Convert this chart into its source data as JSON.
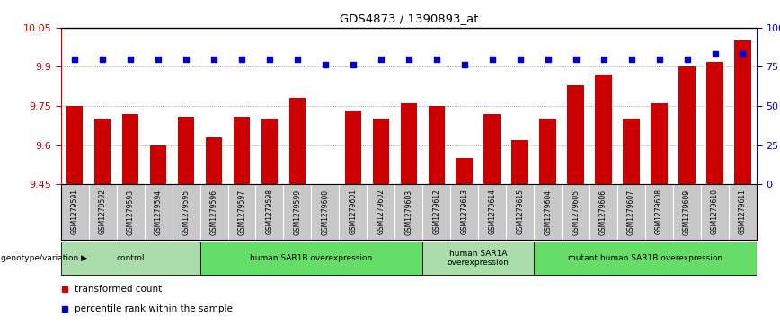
{
  "title": "GDS4873 / 1390893_at",
  "samples": [
    "GSM1279591",
    "GSM1279592",
    "GSM1279593",
    "GSM1279594",
    "GSM1279595",
    "GSM1279596",
    "GSM1279597",
    "GSM1279598",
    "GSM1279599",
    "GSM1279600",
    "GSM1279601",
    "GSM1279602",
    "GSM1279603",
    "GSM1279612",
    "GSM1279613",
    "GSM1279614",
    "GSM1279615",
    "GSM1279604",
    "GSM1279605",
    "GSM1279606",
    "GSM1279607",
    "GSM1279608",
    "GSM1279609",
    "GSM1279610",
    "GSM1279611"
  ],
  "bar_values": [
    9.75,
    9.7,
    9.72,
    9.6,
    9.71,
    9.63,
    9.71,
    9.7,
    9.78,
    9.45,
    9.73,
    9.7,
    9.76,
    9.75,
    9.55,
    9.72,
    9.62,
    9.7,
    9.83,
    9.87,
    9.7,
    9.76,
    9.9,
    9.92,
    10.0
  ],
  "percentile_values": [
    9.93,
    9.93,
    9.93,
    9.93,
    9.93,
    9.93,
    9.93,
    9.93,
    9.93,
    9.91,
    9.91,
    9.93,
    9.93,
    9.93,
    9.91,
    9.93,
    9.93,
    9.93,
    9.93,
    9.93,
    9.93,
    9.93,
    9.93,
    9.95,
    9.95
  ],
  "bar_color": "#cc0000",
  "dot_color": "#0000cc",
  "ymin": 9.45,
  "ymax": 10.05,
  "yticks": [
    9.45,
    9.6,
    9.75,
    9.9,
    10.05
  ],
  "ytick_labels": [
    "9.45",
    "9.6",
    "9.75",
    "9.9",
    "10.05"
  ],
  "right_ytick_labels": [
    "0",
    "25",
    "50",
    "75",
    "100%"
  ],
  "groups": [
    {
      "label": "control",
      "start": 0,
      "end": 5,
      "color": "#aaddaa"
    },
    {
      "label": "human SAR1B overexpression",
      "start": 5,
      "end": 13,
      "color": "#66dd66"
    },
    {
      "label": "human SAR1A\noverexpression",
      "start": 13,
      "end": 17,
      "color": "#aaddaa"
    },
    {
      "label": "mutant human SAR1B overexpression",
      "start": 17,
      "end": 25,
      "color": "#66dd66"
    }
  ],
  "genotype_label": "genotype/variation",
  "legend_items": [
    {
      "label": "transformed count",
      "color": "#cc0000"
    },
    {
      "label": "percentile rank within the sample",
      "color": "#0000cc"
    }
  ],
  "bg_color": "#ffffff",
  "grid_color": "#888888",
  "tick_area_color": "#c8c8c8"
}
